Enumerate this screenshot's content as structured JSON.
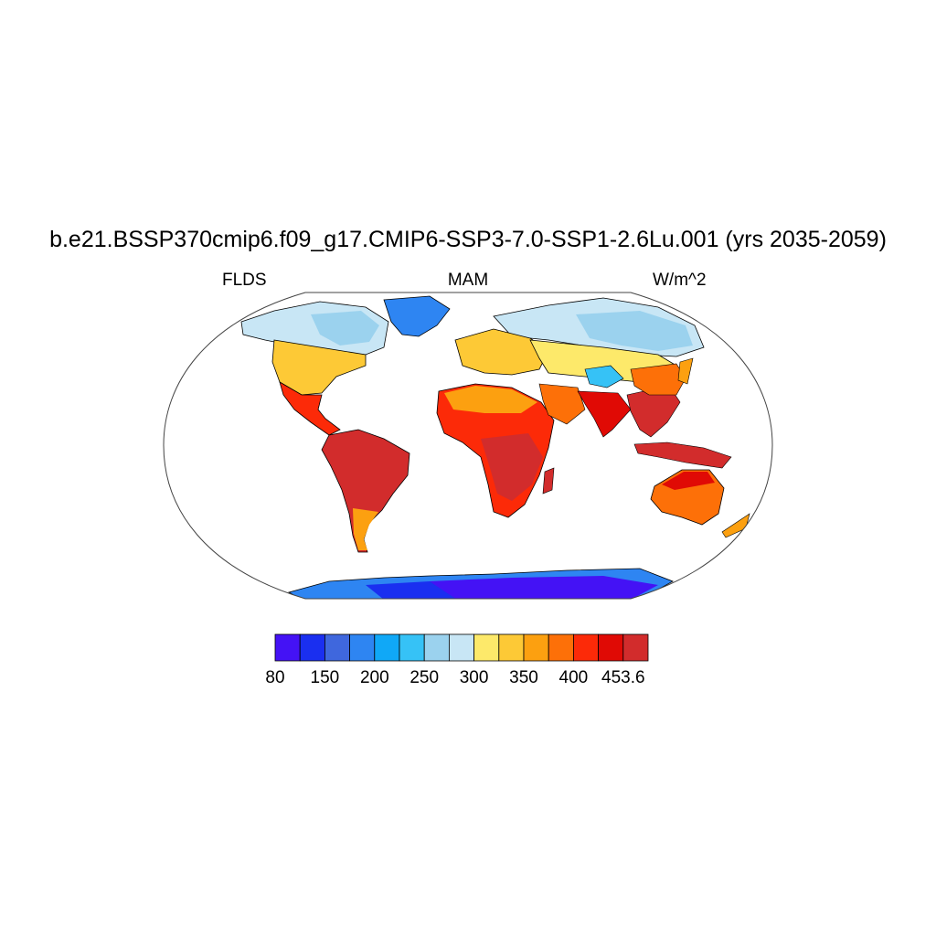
{
  "title": "b.e21.BSSP370cmip6.f09_g17.CMIP6-SSP3-7.0-SSP1-2.6Lu.001 (yrs 2035-2059)",
  "left_label": "FLDS",
  "center_label": "MAM",
  "right_label": "W/m^2",
  "map": {
    "projection": "Robinson",
    "variable": "FLDS",
    "season": "MAM",
    "units": "W/m^2"
  },
  "colorbar": {
    "colors": [
      "#4412f5",
      "#1a2ff0",
      "#3f67dd",
      "#2e85f2",
      "#10a8f7",
      "#36c2f6",
      "#9bd2ee",
      "#c8e6f5",
      "#fde96a",
      "#fdc936",
      "#fca010",
      "#fd7008",
      "#fc2a08",
      "#e00a05",
      "#d22c2c"
    ],
    "tick_labels": [
      {
        "label": "80",
        "boundary": 0
      },
      {
        "label": "150",
        "boundary": 2
      },
      {
        "label": "200",
        "boundary": 4
      },
      {
        "label": "250",
        "boundary": 6
      },
      {
        "label": "300",
        "boundary": 8
      },
      {
        "label": "350",
        "boundary": 10
      },
      {
        "label": "400",
        "boundary": 12
      },
      {
        "label": "453.6",
        "boundary": 14
      }
    ]
  }
}
